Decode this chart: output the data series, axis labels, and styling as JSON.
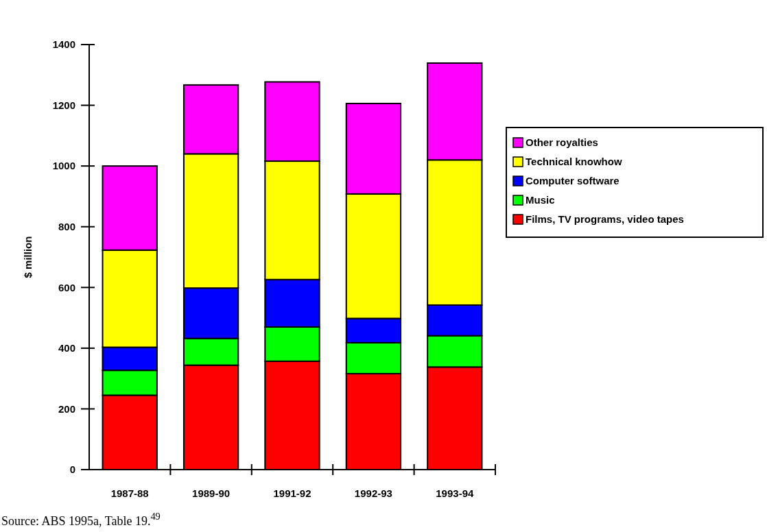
{
  "chart_data": {
    "type": "bar",
    "stacked": true,
    "ylabel": "$ million",
    "categories": [
      "1987-88",
      "1989-90",
      "1991-92",
      "1992-93",
      "1993-94"
    ],
    "series": [
      {
        "name": "Films, TV programs, video tapes",
        "color": "#ff0000",
        "values": [
          245,
          344,
          357,
          316,
          338
        ]
      },
      {
        "name": "Music",
        "color": "#00ff00",
        "values": [
          82,
          88,
          113,
          102,
          103
        ]
      },
      {
        "name": "Computer software",
        "color": "#0000ff",
        "values": [
          76,
          166,
          156,
          80,
          101
        ]
      },
      {
        "name": "Technical knowhow",
        "color": "#ffff00",
        "values": [
          320,
          442,
          390,
          410,
          478
        ]
      },
      {
        "name": "Other royalties",
        "color": "#ff00ff",
        "values": [
          277,
          227,
          261,
          298,
          319
        ]
      }
    ],
    "ylim": [
      0,
      1400
    ],
    "yticks": [
      0,
      200,
      400,
      600,
      800,
      1000,
      1200,
      1400
    ],
    "grid": false,
    "legend": "right",
    "annotations": [
      "Source: ABS 1995a, Table 19.$^{49}$"
    ]
  }
}
